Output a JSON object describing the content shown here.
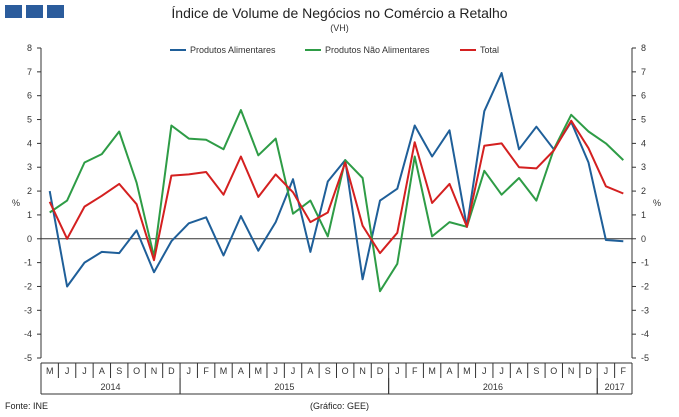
{
  "header": {
    "title": "Índice de Volume de Negócios no Comércio a Retalho",
    "subtitle": "(VH)"
  },
  "footer": {
    "source": "Fonte: INE",
    "credit": "(Gráfico: GEE)"
  },
  "chart_data": {
    "type": "line",
    "title": "Índice de Volume de Negócios no Comércio a Retalho",
    "subtitle": "(VH)",
    "ylabel_left": "%",
    "ylabel_right": "%",
    "ylim": [
      -5,
      8
    ],
    "yticks": [
      -5,
      -4,
      -3,
      -2,
      -1,
      0,
      1,
      2,
      3,
      4,
      5,
      6,
      7,
      8
    ],
    "grid": false,
    "legend_position": "top",
    "categories": [
      "M",
      "J",
      "J",
      "A",
      "S",
      "O",
      "N",
      "D",
      "J",
      "F",
      "M",
      "A",
      "M",
      "J",
      "J",
      "A",
      "S",
      "O",
      "N",
      "D",
      "J",
      "F",
      "M",
      "A",
      "M",
      "J",
      "J",
      "A",
      "S",
      "O",
      "N",
      "D",
      "J",
      "F"
    ],
    "years": [
      {
        "label": "2014",
        "start": 0,
        "end": 7
      },
      {
        "label": "2015",
        "start": 8,
        "end": 19
      },
      {
        "label": "2016",
        "start": 20,
        "end": 31
      },
      {
        "label": "2017",
        "start": 32,
        "end": 33
      }
    ],
    "series": [
      {
        "name": "Produtos Alimentares",
        "color": "#1f5f99",
        "values": [
          2.0,
          -2.0,
          -1.0,
          -0.55,
          -0.6,
          0.35,
          -1.4,
          -0.1,
          0.65,
          0.9,
          -0.7,
          0.95,
          -0.5,
          0.7,
          2.5,
          -0.55,
          2.4,
          3.3,
          -1.7,
          1.6,
          2.1,
          4.75,
          3.45,
          4.55,
          0.5,
          5.35,
          6.95,
          3.75,
          4.7,
          3.75,
          4.9,
          3.2,
          -0.05,
          -0.1
        ]
      },
      {
        "name": "Produtos Não Alimentares",
        "color": "#2e9c46",
        "values": [
          1.1,
          1.6,
          3.2,
          3.55,
          4.5,
          2.35,
          -0.75,
          4.75,
          4.2,
          4.15,
          3.75,
          5.4,
          3.5,
          4.2,
          1.05,
          1.6,
          0.1,
          3.3,
          2.55,
          -2.2,
          -1.05,
          3.45,
          0.1,
          0.7,
          0.5,
          2.85,
          1.85,
          2.55,
          1.6,
          3.75,
          5.2,
          4.5,
          4.0,
          3.3
        ]
      },
      {
        "name": "Total",
        "color": "#d42020",
        "values": [
          1.55,
          0.0,
          1.35,
          1.8,
          2.3,
          1.45,
          -0.9,
          2.65,
          2.7,
          2.8,
          1.85,
          3.45,
          1.75,
          2.7,
          1.95,
          0.7,
          1.1,
          3.2,
          0.55,
          -0.6,
          0.25,
          4.05,
          1.5,
          2.3,
          0.5,
          3.9,
          4.0,
          3.0,
          2.95,
          3.7,
          4.95,
          3.8,
          2.2,
          1.9
        ]
      }
    ]
  }
}
